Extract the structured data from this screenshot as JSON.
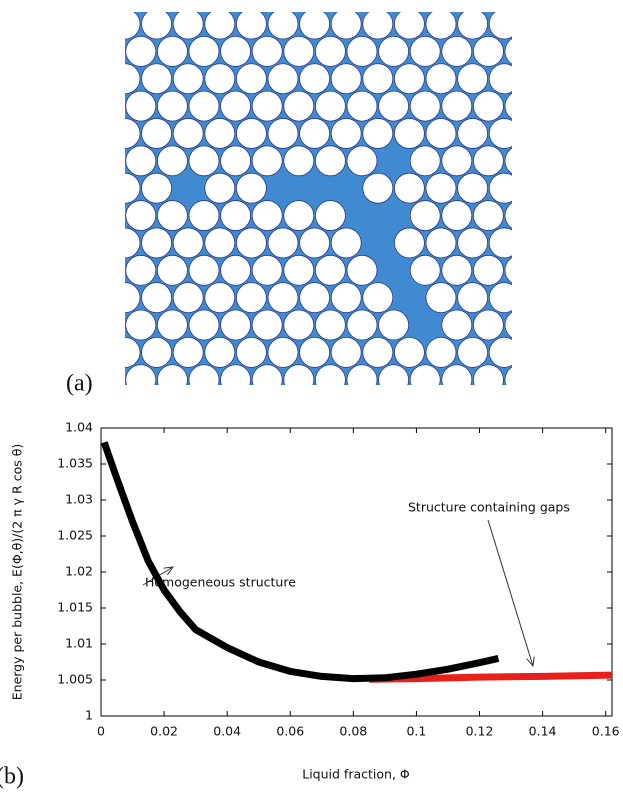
{
  "panel_labels": [
    "(a)",
    "(b)"
  ],
  "chart_data": {
    "type": "line",
    "xlabel": "Liquid fraction, Φ",
    "ylabel": "Energy per bubble, E(Φ,θ)/(2 π γ R cos θ)",
    "xlim": [
      0,
      0.162
    ],
    "ylim": [
      1,
      1.04
    ],
    "xticks": [
      0,
      0.02,
      0.04,
      0.06,
      0.08,
      0.1,
      0.12,
      0.14,
      0.16
    ],
    "yticks": [
      1,
      1.005,
      1.01,
      1.015,
      1.02,
      1.025,
      1.03,
      1.035,
      1.04
    ],
    "series": [
      {
        "color": "#000000",
        "x": [
          0.001,
          0.005,
          0.01,
          0.015,
          0.02,
          0.025,
          0.03,
          0.04,
          0.05,
          0.06,
          0.07,
          0.08,
          0.09,
          0.1,
          0.11,
          0.12,
          0.126
        ],
        "values": [
          1.038,
          1.033,
          1.027,
          1.0215,
          1.0175,
          1.0145,
          1.012,
          1.0095,
          1.0075,
          1.0062,
          1.0055,
          1.0052,
          1.0053,
          1.0058,
          1.0065,
          1.0074,
          1.008
        ]
      },
      {
        "color": "#e8201a",
        "x": [
          0.085,
          0.1,
          0.12,
          0.14,
          0.164
        ],
        "values": [
          1.0051,
          1.0052,
          1.0054,
          1.0055,
          1.0057
        ]
      }
    ],
    "annotations": [
      "Homogeneous structure",
      "Structure containing gaps"
    ]
  }
}
